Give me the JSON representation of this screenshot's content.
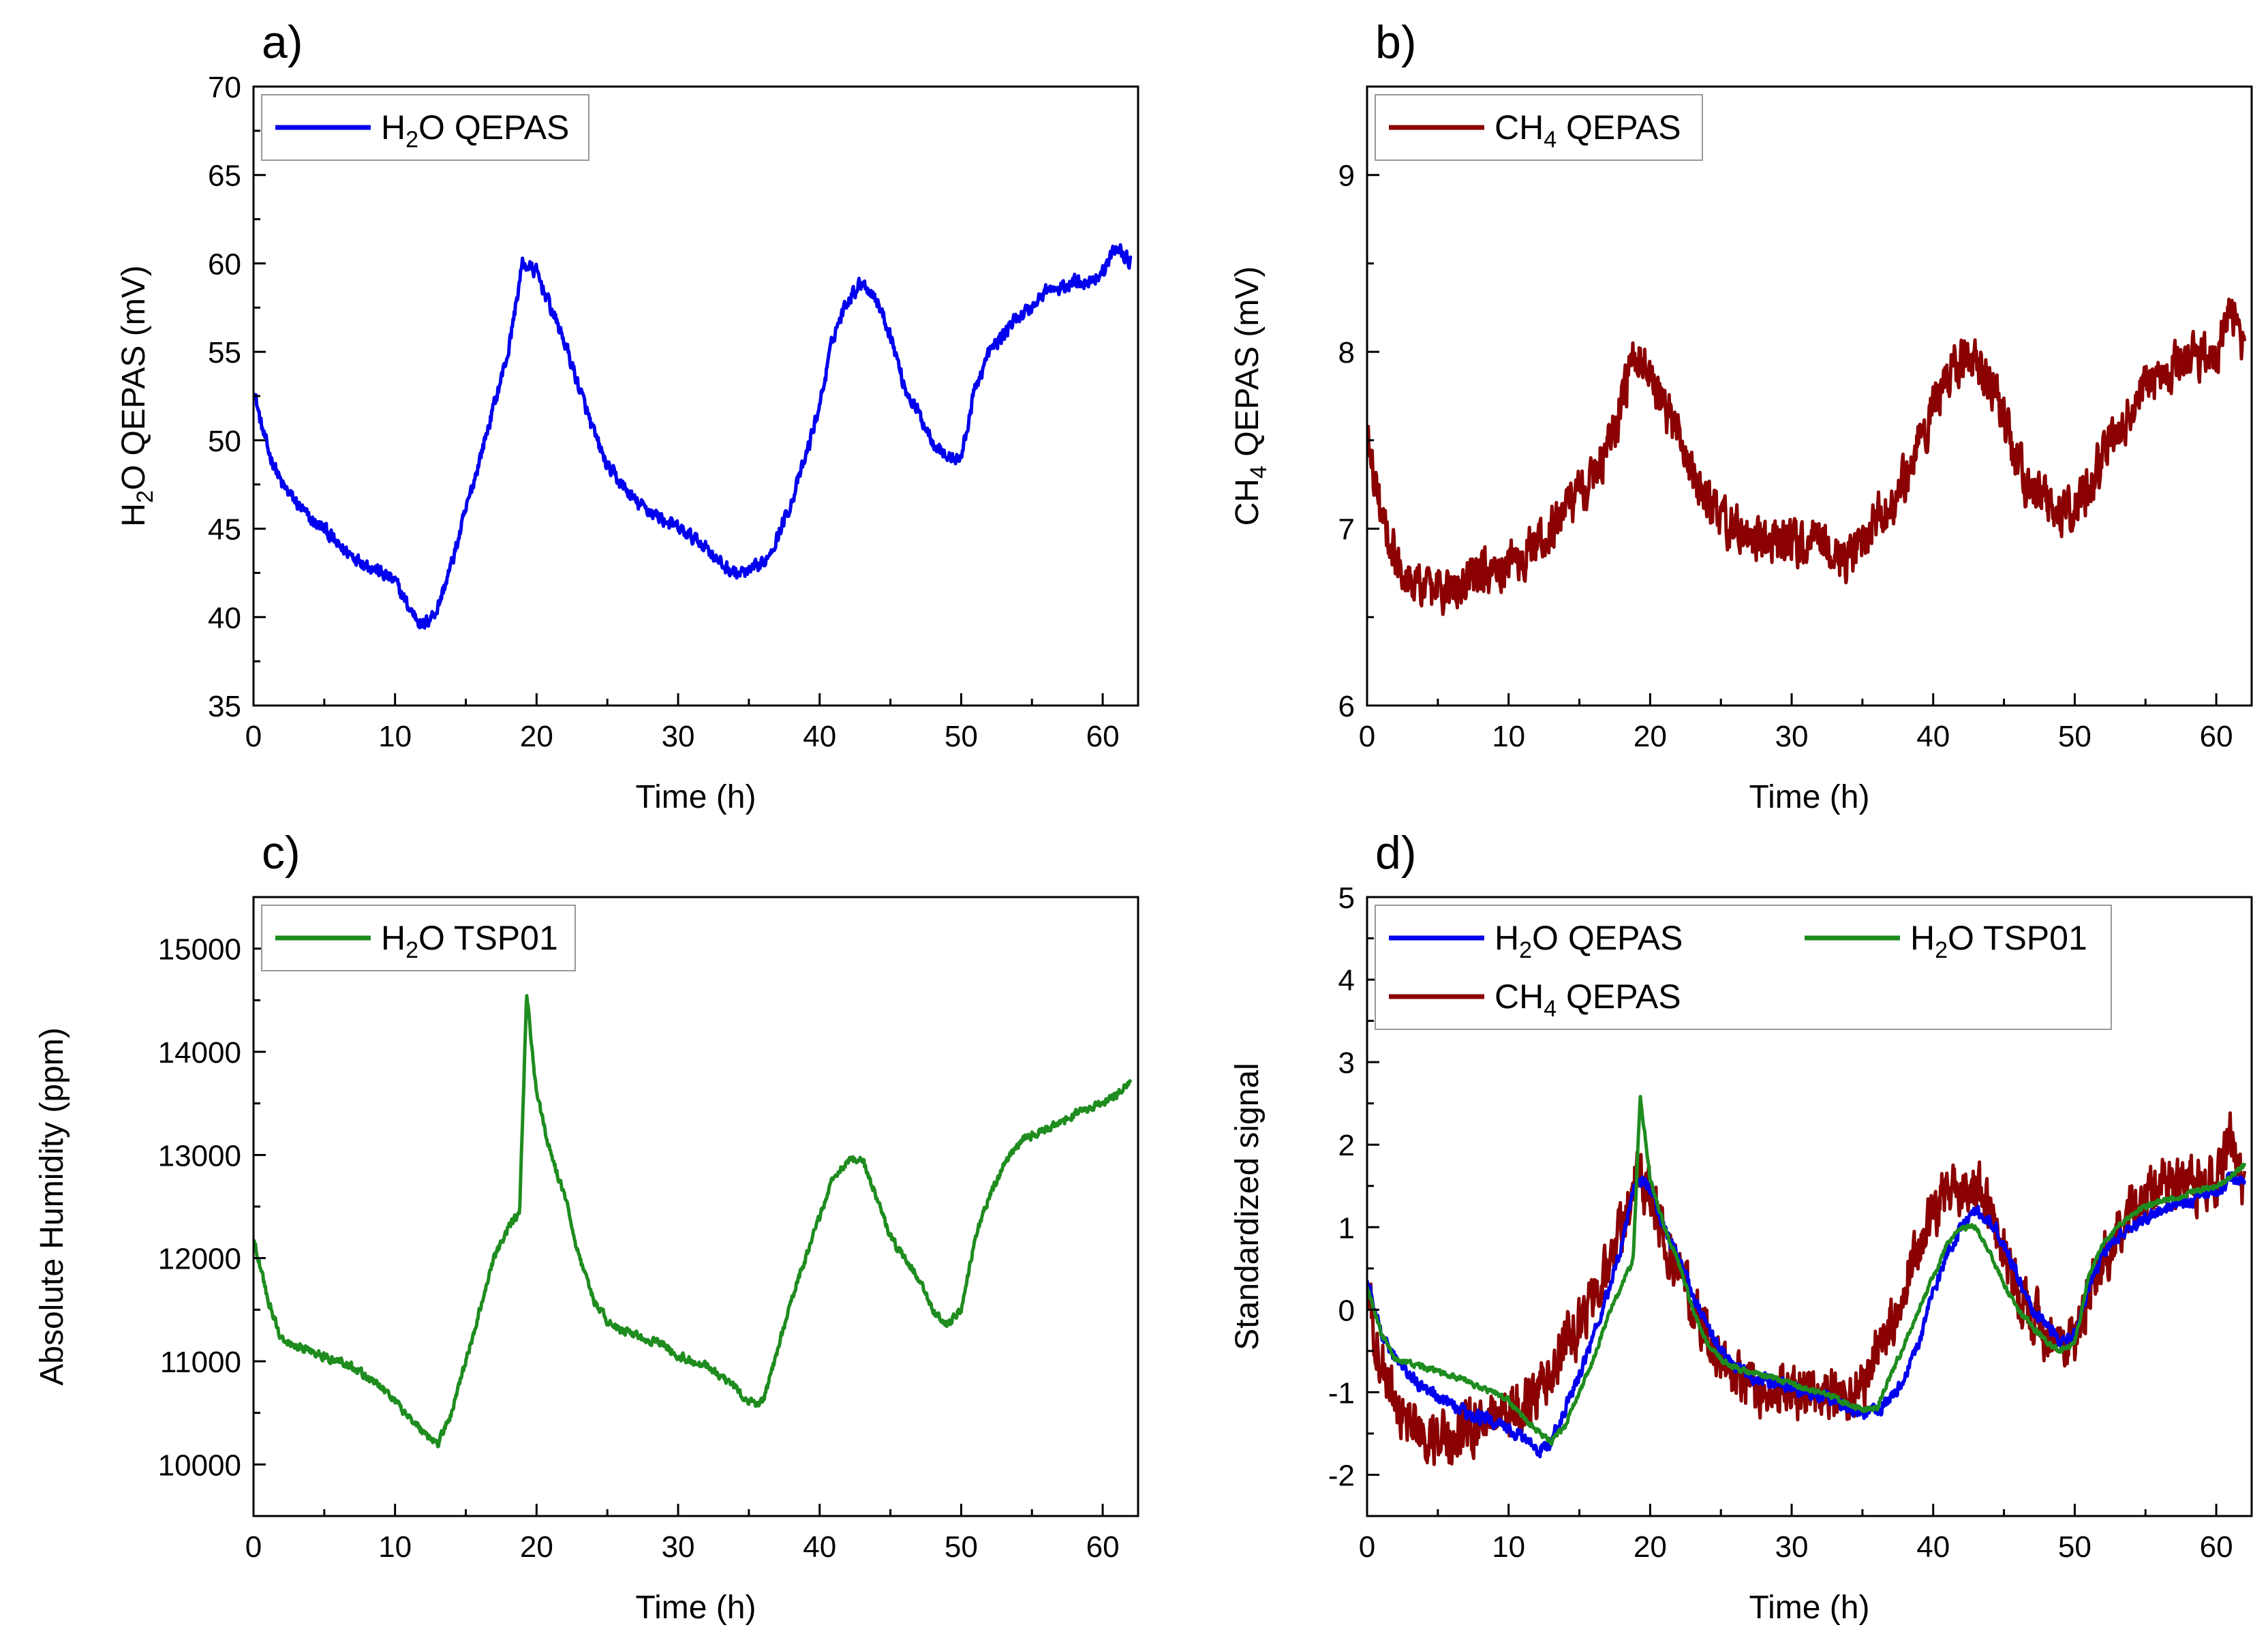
{
  "figure": {
    "title": ""
  },
  "chart_data": [
    {
      "type": "line",
      "panel_label": "a)",
      "title": "",
      "xlabel": "Time (h)",
      "ylabel": {
        "pre": "H",
        "sub": "2",
        "post": "O QEPAS (mV)"
      },
      "xlim": [
        0,
        62.5
      ],
      "ylim": [
        35,
        70
      ],
      "xticks": [
        0,
        10,
        20,
        30,
        40,
        50,
        60
      ],
      "yticks": [
        35,
        40,
        45,
        50,
        55,
        60,
        65,
        70
      ],
      "legend_position": "top-left",
      "series": [
        {
          "name": {
            "pre": "H",
            "sub": "2",
            "post": "O QEPAS"
          },
          "color": "#0000ee",
          "noise": 0.6,
          "x": [
            0,
            0.5,
            1,
            2,
            3,
            4,
            5,
            6,
            7,
            8,
            9,
            10,
            11,
            12,
            13,
            14,
            15,
            16,
            17,
            18,
            19,
            20,
            21,
            22,
            23,
            24,
            25,
            26,
            27,
            28,
            29,
            30,
            31,
            32,
            33,
            34,
            35,
            36,
            37,
            38,
            39,
            40,
            41,
            42,
            43,
            44,
            45,
            46,
            47,
            48,
            49,
            50,
            51,
            52,
            53,
            54,
            55,
            56,
            57,
            58,
            59,
            60,
            61,
            62
          ],
          "y": [
            53.0,
            51.0,
            49.5,
            47.5,
            46.5,
            45.5,
            45.0,
            44.0,
            43.5,
            43.0,
            42.5,
            42.0,
            40.5,
            39.5,
            40.5,
            43.0,
            46.0,
            49.0,
            52.0,
            55.0,
            60.0,
            59.5,
            57.5,
            55.5,
            53.0,
            50.5,
            48.5,
            47.5,
            46.5,
            46.0,
            45.5,
            45.0,
            44.5,
            44.0,
            43.0,
            42.5,
            42.5,
            43.0,
            44.5,
            46.5,
            49.0,
            52.0,
            56.0,
            58.0,
            59.0,
            58.0,
            56.0,
            53.0,
            51.5,
            50.0,
            49.0,
            49.0,
            53.0,
            55.0,
            56.0,
            57.0,
            57.5,
            58.5,
            58.5,
            59.0,
            59.0,
            59.5,
            61.0,
            60.0
          ]
        }
      ]
    },
    {
      "type": "line",
      "panel_label": "b)",
      "title": "",
      "xlabel": "Time (h)",
      "ylabel": {
        "pre": "CH",
        "sub": "4",
        "post": " QEPAS (mV)"
      },
      "xlim": [
        0,
        62.5
      ],
      "ylim": [
        6,
        9.5
      ],
      "xticks": [
        0,
        10,
        20,
        30,
        40,
        50,
        60
      ],
      "yticks": [
        6,
        7,
        8,
        9
      ],
      "legend_position": "top-left",
      "series": [
        {
          "name": {
            "pre": "CH",
            "sub": "4",
            "post": " QEPAS"
          },
          "color": "#8b0000",
          "noise": 0.2,
          "x": [
            0,
            1,
            2,
            3,
            4,
            5,
            6,
            7,
            8,
            9,
            10,
            11,
            12,
            13,
            14,
            15,
            16,
            17,
            18,
            19,
            20,
            21,
            22,
            23,
            24,
            25,
            26,
            27,
            28,
            29,
            30,
            31,
            32,
            33,
            34,
            35,
            36,
            37,
            38,
            39,
            40,
            41,
            42,
            43,
            44,
            45,
            46,
            47,
            48,
            49,
            50,
            51,
            52,
            53,
            54,
            55,
            56,
            57,
            58,
            59,
            60,
            61,
            62
          ],
          "y": [
            7.5,
            7.1,
            6.85,
            6.75,
            6.65,
            6.65,
            6.65,
            6.7,
            6.75,
            6.8,
            6.8,
            6.85,
            6.9,
            7.0,
            7.1,
            7.2,
            7.3,
            7.5,
            7.7,
            8.0,
            7.9,
            7.7,
            7.5,
            7.3,
            7.15,
            7.05,
            7.0,
            6.95,
            6.9,
            6.9,
            6.9,
            6.9,
            6.95,
            6.85,
            6.8,
            6.9,
            7.05,
            7.15,
            7.3,
            7.5,
            7.7,
            7.85,
            7.95,
            7.95,
            7.85,
            7.6,
            7.35,
            7.2,
            7.15,
            7.05,
            7.1,
            7.25,
            7.4,
            7.55,
            7.7,
            7.8,
            7.85,
            7.9,
            7.95,
            8.0,
            7.95,
            8.3,
            7.95
          ]
        }
      ]
    },
    {
      "type": "line",
      "panel_label": "c)",
      "title": "",
      "xlabel": "Time (h)",
      "ylabel": {
        "pre": "Absolute Humidity (ppm)",
        "sub": "",
        "post": ""
      },
      "xlim": [
        0,
        62.5
      ],
      "ylim": [
        9500,
        15500
      ],
      "xticks": [
        0,
        10,
        20,
        30,
        40,
        50,
        60
      ],
      "yticks": [
        10000,
        11000,
        12000,
        13000,
        14000,
        15000
      ],
      "legend_position": "top-left",
      "series": [
        {
          "name": {
            "pre": "H",
            "sub": "2",
            "post": "O TSP01"
          },
          "color": "#1e8c1e",
          "noise": 60,
          "x": [
            0,
            1,
            2,
            3,
            4,
            5,
            6,
            7,
            8,
            9,
            10,
            11,
            12,
            13,
            14,
            15,
            16,
            17,
            18,
            18.8,
            19.3,
            20,
            21,
            22,
            23,
            24,
            25,
            26,
            27,
            28,
            29,
            30,
            31,
            32,
            33,
            34,
            35,
            36,
            37,
            38,
            39,
            40,
            41,
            42,
            43,
            44,
            45,
            46,
            47,
            48,
            49,
            50,
            51,
            52,
            53,
            54,
            55,
            56,
            57,
            58,
            59,
            60,
            61,
            62
          ],
          "y": [
            12200,
            11600,
            11200,
            11150,
            11100,
            11050,
            11000,
            10950,
            10850,
            10750,
            10600,
            10450,
            10300,
            10200,
            10500,
            11000,
            11500,
            12000,
            12300,
            12450,
            14550,
            13600,
            13000,
            12600,
            12000,
            11600,
            11400,
            11300,
            11250,
            11200,
            11150,
            11050,
            11000,
            10950,
            10850,
            10750,
            10600,
            10600,
            11100,
            11600,
            12000,
            12400,
            12800,
            12950,
            12950,
            12600,
            12200,
            12000,
            11800,
            11500,
            11350,
            11500,
            12200,
            12600,
            12900,
            13100,
            13200,
            13250,
            13300,
            13400,
            13450,
            13500,
            13600,
            13700
          ]
        }
      ]
    },
    {
      "type": "line",
      "panel_label": "d)",
      "title": "",
      "xlabel": "Time (h)",
      "ylabel": {
        "pre": "Standardized signal",
        "sub": "",
        "post": ""
      },
      "xlim": [
        0,
        62.5
      ],
      "ylim": [
        -2.5,
        5
      ],
      "xticks": [
        0,
        10,
        20,
        30,
        40,
        50,
        60
      ],
      "yticks": [
        -2,
        -1,
        0,
        1,
        2,
        3,
        4,
        5
      ],
      "legend_position": "top",
      "series": [
        {
          "name": {
            "pre": "CH",
            "sub": "4",
            "post": " QEPAS"
          },
          "color": "#8b0000",
          "noise": 0.5,
          "x": [
            0,
            1,
            2,
            3,
            4,
            5,
            6,
            7,
            8,
            9,
            10,
            11,
            12,
            13,
            14,
            15,
            16,
            17,
            18,
            19,
            20,
            21,
            22,
            23,
            24,
            25,
            26,
            27,
            28,
            29,
            30,
            31,
            32,
            33,
            34,
            35,
            36,
            37,
            38,
            39,
            40,
            41,
            42,
            43,
            44,
            45,
            46,
            47,
            48,
            49,
            50,
            51,
            52,
            53,
            54,
            55,
            56,
            57,
            58,
            59,
            60,
            61,
            62
          ],
          "y": [
            0.2,
            -0.6,
            -1.2,
            -1.4,
            -1.5,
            -1.6,
            -1.55,
            -1.4,
            -1.3,
            -1.25,
            -1.25,
            -1.2,
            -1.0,
            -0.7,
            -0.4,
            -0.2,
            0.1,
            0.5,
            1.0,
            1.6,
            1.4,
            0.9,
            0.5,
            0.1,
            -0.3,
            -0.6,
            -0.8,
            -0.9,
            -1.0,
            -1.0,
            -1.0,
            -1.0,
            -0.9,
            -1.0,
            -1.1,
            -0.9,
            -0.5,
            -0.2,
            0.3,
            0.8,
            1.2,
            1.4,
            1.5,
            1.5,
            1.2,
            0.7,
            0.2,
            -0.1,
            -0.3,
            -0.6,
            -0.4,
            0.2,
            0.6,
            0.9,
            1.2,
            1.4,
            1.5,
            1.5,
            1.5,
            1.6,
            1.5,
            2.1,
            1.5
          ]
        },
        {
          "name": {
            "pre": "H",
            "sub": "2",
            "post": "O QEPAS"
          },
          "color": "#0000ee",
          "noise": 0.12,
          "x": [
            0,
            1,
            2,
            3,
            4,
            5,
            6,
            7,
            8,
            9,
            10,
            11,
            12,
            13,
            14,
            15,
            16,
            17,
            18,
            19,
            20,
            21,
            22,
            23,
            24,
            25,
            26,
            27,
            28,
            29,
            30,
            31,
            32,
            33,
            34,
            35,
            36,
            37,
            38,
            39,
            40,
            41,
            42,
            43,
            44,
            45,
            46,
            47,
            48,
            49,
            50,
            51,
            52,
            53,
            54,
            55,
            56,
            57,
            58,
            59,
            60,
            61,
            62
          ],
          "y": [
            0.4,
            -0.3,
            -0.6,
            -0.8,
            -0.95,
            -1.05,
            -1.15,
            -1.25,
            -1.3,
            -1.35,
            -1.45,
            -1.55,
            -1.7,
            -1.6,
            -1.2,
            -0.8,
            -0.3,
            0.2,
            0.8,
            1.6,
            1.5,
            1.0,
            0.6,
            0.2,
            -0.2,
            -0.5,
            -0.7,
            -0.8,
            -0.85,
            -0.9,
            -0.95,
            -1.0,
            -1.05,
            -1.1,
            -1.2,
            -1.25,
            -1.25,
            -1.1,
            -0.8,
            -0.4,
            0.2,
            0.7,
            1.0,
            1.2,
            1.1,
            0.8,
            0.4,
            0.0,
            -0.2,
            -0.35,
            -0.3,
            0.3,
            0.7,
            0.9,
            1.0,
            1.1,
            1.2,
            1.3,
            1.3,
            1.4,
            1.4,
            1.6,
            1.5
          ]
        },
        {
          "name": {
            "pre": "H",
            "sub": "2",
            "post": "O TSP01"
          },
          "color": "#1e8c1e",
          "noise": 0.05,
          "x": [
            0,
            1,
            2,
            3,
            4,
            5,
            6,
            7,
            8,
            9,
            10,
            11,
            12,
            13,
            14,
            15,
            16,
            17,
            18,
            18.8,
            19.3,
            20,
            21,
            22,
            23,
            24,
            25,
            26,
            27,
            28,
            29,
            30,
            31,
            32,
            33,
            34,
            35,
            36,
            37,
            38,
            39,
            40,
            41,
            42,
            43,
            44,
            45,
            46,
            47,
            48,
            49,
            50,
            51,
            52,
            53,
            54,
            55,
            56,
            57,
            58,
            59,
            60,
            61,
            62
          ],
          "y": [
            0.3,
            -0.3,
            -0.6,
            -0.65,
            -0.7,
            -0.75,
            -0.8,
            -0.85,
            -0.95,
            -1.0,
            -1.1,
            -1.3,
            -1.45,
            -1.6,
            -1.4,
            -1.0,
            -0.6,
            -0.1,
            0.3,
            0.6,
            2.6,
            1.6,
            1.0,
            0.6,
            0.0,
            -0.4,
            -0.6,
            -0.7,
            -0.75,
            -0.8,
            -0.85,
            -0.9,
            -0.95,
            -1.0,
            -1.05,
            -1.15,
            -1.2,
            -1.2,
            -0.8,
            -0.4,
            0.0,
            0.4,
            0.8,
            1.0,
            1.0,
            0.7,
            0.3,
            0.0,
            -0.2,
            -0.4,
            -0.5,
            -0.4,
            0.4,
            0.8,
            1.0,
            1.15,
            1.25,
            1.3,
            1.35,
            1.4,
            1.45,
            1.5,
            1.6,
            1.75
          ]
        }
      ]
    }
  ]
}
